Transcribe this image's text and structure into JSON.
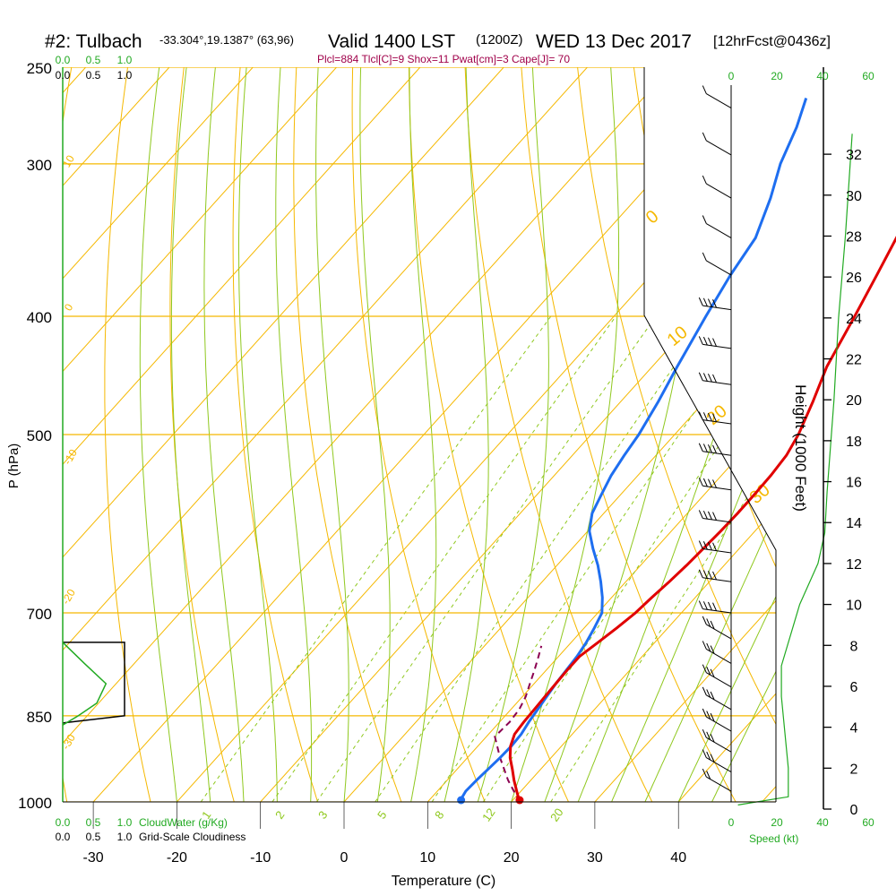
{
  "header": {
    "station": "#2: Tulbach",
    "coords": "-33.304°,19.1387° (63,96)",
    "valid": "Valid 1400 LST",
    "zulu": "(1200Z)",
    "date": "WED 13 Dec 2017",
    "forecast": "[12hrFcst@0436z]"
  },
  "indices_text": "Plcl=884 Tlcl[C]=9 Shox=11 Pwat[cm]=3 Cape[J]= 70",
  "colors": {
    "isotherm": "#f5b800",
    "dry_adiabat": "#f5b800",
    "moist_adiabat": "#8fc81e",
    "mixing_ratio": "#8fc81e",
    "temperature": "#e00000",
    "dewpoint": "#1e6ef0",
    "parcel": "#8b0050",
    "accent_green": "#22aa22",
    "indices": "#a0004a"
  },
  "chart_data": {
    "type": "skew-t",
    "title": "#2: Tulbach",
    "xlabel": "Temperature (C)",
    "ylabel": "P (hPa)",
    "y2label": "Height (1000 Feet)",
    "pressure_ticks": [
      250,
      300,
      400,
      500,
      700,
      850,
      1000
    ],
    "pressure_gridlines": [
      250,
      300,
      400,
      500,
      700,
      850,
      1000
    ],
    "temp_ticks": [
      -30,
      -20,
      -10,
      0,
      10,
      20,
      30,
      40
    ],
    "height_ticks": [
      0,
      2,
      4,
      6,
      8,
      10,
      12,
      14,
      16,
      18,
      20,
      22,
      24,
      26,
      28,
      30,
      32
    ],
    "dry_adiabat_labels": [
      "10",
      "0",
      "-10",
      "-20",
      "-30",
      "0",
      "10",
      "20",
      "30"
    ],
    "mixing_ratio_labels": [
      "1",
      "2",
      "3",
      "5",
      "8",
      "12",
      "20"
    ],
    "temperature": {
      "name": "Temperature",
      "points": [
        [
          1000,
          21.0
        ],
        [
          980,
          19.5
        ],
        [
          960,
          18.0
        ],
        [
          940,
          16.6
        ],
        [
          920,
          15.1
        ],
        [
          900,
          13.9
        ],
        [
          880,
          13.1
        ],
        [
          860,
          12.9
        ],
        [
          840,
          12.8
        ],
        [
          820,
          12.7
        ],
        [
          800,
          12.6
        ],
        [
          780,
          12.5
        ],
        [
          760,
          12.5
        ],
        [
          740,
          13.2
        ],
        [
          720,
          13.9
        ],
        [
          700,
          14.5
        ],
        [
          680,
          14.8
        ],
        [
          660,
          15.2
        ],
        [
          640,
          15.5
        ],
        [
          620,
          15.7
        ],
        [
          600,
          15.9
        ],
        [
          580,
          16.0
        ],
        [
          560,
          16.0
        ],
        [
          540,
          15.9
        ],
        [
          520,
          15.6
        ],
        [
          500,
          14.8
        ],
        [
          470,
          13.0
        ],
        [
          440,
          10.9
        ],
        [
          400,
          8.8
        ],
        [
          370,
          7.0
        ],
        [
          340,
          5.0
        ],
        [
          310,
          2.0
        ],
        [
          290,
          0.5
        ],
        [
          270,
          -1.0
        ],
        [
          255,
          -2.5
        ]
      ]
    },
    "dewpoint": {
      "name": "Dew point",
      "points": [
        [
          1000,
          14.0
        ],
        [
          990,
          13.6
        ],
        [
          980,
          13.4
        ],
        [
          960,
          13.5
        ],
        [
          940,
          13.7
        ],
        [
          920,
          13.9
        ],
        [
          900,
          14.0
        ],
        [
          880,
          13.9
        ],
        [
          860,
          13.5
        ],
        [
          840,
          13.2
        ],
        [
          820,
          12.9
        ],
        [
          800,
          12.6
        ],
        [
          780,
          12.4
        ],
        [
          760,
          12.2
        ],
        [
          740,
          11.8
        ],
        [
          720,
          11.2
        ],
        [
          700,
          10.5
        ],
        [
          680,
          8.9
        ],
        [
          660,
          7.0
        ],
        [
          640,
          4.9
        ],
        [
          620,
          2.5
        ],
        [
          600,
          0.2
        ],
        [
          580,
          -1.4
        ],
        [
          560,
          -2.3
        ],
        [
          540,
          -3.2
        ],
        [
          520,
          -3.8
        ],
        [
          500,
          -4.3
        ],
        [
          470,
          -5.5
        ],
        [
          440,
          -7.0
        ],
        [
          400,
          -9.0
        ],
        [
          370,
          -10.5
        ],
        [
          345,
          -11.5
        ],
        [
          320,
          -14.0
        ],
        [
          300,
          -16.5
        ],
        [
          280,
          -18.5
        ],
        [
          265,
          -20.5
        ]
      ]
    },
    "parcel": {
      "name": "Parcel",
      "points": [
        [
          1000,
          21.0
        ],
        [
          960,
          17.3
        ],
        [
          920,
          13.9
        ],
        [
          884,
          11.0
        ],
        [
          860,
          11.2
        ],
        [
          840,
          11.0
        ],
        [
          820,
          10.4
        ],
        [
          800,
          9.5
        ],
        [
          780,
          8.6
        ],
        [
          760,
          7.6
        ],
        [
          745,
          6.8
        ]
      ]
    },
    "surface_temp": 21.0,
    "surface_dewpoint": 14.0,
    "cloudwater_scale": [
      "0.0",
      "0.5",
      "1.0"
    ],
    "cloudiness_scale": [
      "0.0",
      "0.5",
      "1.0"
    ],
    "speed_scale": [
      "0",
      "20",
      "40",
      "60"
    ],
    "speed_label": "Speed (kt)",
    "cloudwater_label": "CloudWater (g/Kg)",
    "cloudiness_label": "Grid-Scale Cloudiness",
    "wind_profile": [
      {
        "height_kft": 0.2,
        "speed_kt": 3
      },
      {
        "height_kft": 0.6,
        "speed_kt": 25
      },
      {
        "height_kft": 2.0,
        "speed_kt": 25
      },
      {
        "height_kft": 5.5,
        "speed_kt": 22
      },
      {
        "height_kft": 7.0,
        "speed_kt": 22
      },
      {
        "height_kft": 10.0,
        "speed_kt": 30
      },
      {
        "height_kft": 12.0,
        "speed_kt": 38
      },
      {
        "height_kft": 13.5,
        "speed_kt": 41
      },
      {
        "height_kft": 15.5,
        "speed_kt": 42
      },
      {
        "height_kft": 20.0,
        "speed_kt": 45
      },
      {
        "height_kft": 24.0,
        "speed_kt": 47
      },
      {
        "height_kft": 28.0,
        "speed_kt": 50
      },
      {
        "height_kft": 33.0,
        "speed_kt": 53
      }
    ],
    "cloudwater_profile": [
      {
        "p": 740,
        "v": 0.0
      },
      {
        "p": 770,
        "v": 0.35
      },
      {
        "p": 800,
        "v": 0.7
      },
      {
        "p": 830,
        "v": 0.55
      },
      {
        "p": 850,
        "v": 0.25
      },
      {
        "p": 865,
        "v": 0.0
      }
    ],
    "cloudiness_profile": [
      {
        "p": 740,
        "v": 1.0
      },
      {
        "p": 850,
        "v": 1.0
      }
    ],
    "wind_barbs": [
      {
        "p": 270,
        "speed_kt": 10
      },
      {
        "p": 295,
        "speed_kt": 10
      },
      {
        "p": 320,
        "speed_kt": 10
      },
      {
        "p": 345,
        "speed_kt": 10
      },
      {
        "p": 370,
        "speed_kt": 10
      },
      {
        "p": 395,
        "speed_kt": 40
      },
      {
        "p": 425,
        "speed_kt": 40
      },
      {
        "p": 455,
        "speed_kt": 40
      },
      {
        "p": 490,
        "speed_kt": 40
      },
      {
        "p": 520,
        "speed_kt": 40
      },
      {
        "p": 555,
        "speed_kt": 40
      },
      {
        "p": 590,
        "speed_kt": 40
      },
      {
        "p": 625,
        "speed_kt": 35
      },
      {
        "p": 660,
        "speed_kt": 35
      },
      {
        "p": 700,
        "speed_kt": 35
      },
      {
        "p": 735,
        "speed_kt": 30
      },
      {
        "p": 770,
        "speed_kt": 25
      },
      {
        "p": 805,
        "speed_kt": 25
      },
      {
        "p": 840,
        "speed_kt": 25
      },
      {
        "p": 875,
        "speed_kt": 25
      },
      {
        "p": 910,
        "speed_kt": 25
      },
      {
        "p": 945,
        "speed_kt": 25
      },
      {
        "p": 980,
        "speed_kt": 20
      }
    ]
  }
}
